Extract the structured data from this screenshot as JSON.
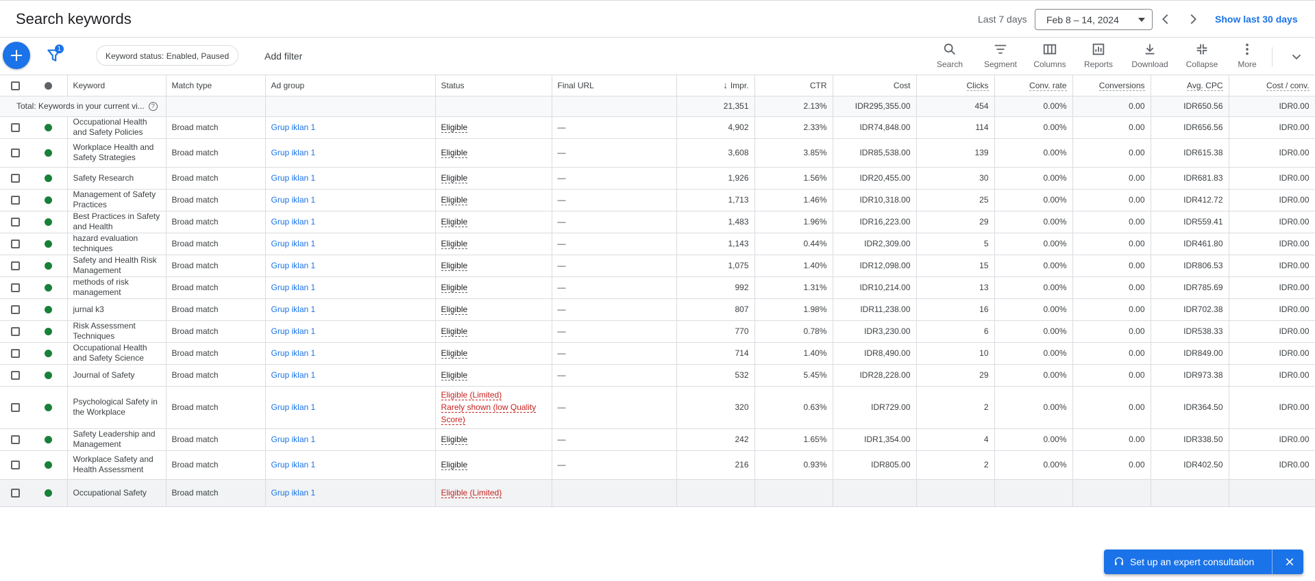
{
  "header": {
    "title": "Search keywords",
    "date_range_label": "Last 7 days",
    "date_range_value": "Feb 8 – 14, 2024",
    "show_last_30": "Show last 30 days"
  },
  "toolbar": {
    "filter_count": "1",
    "filter_chip": "Keyword status: Enabled, Paused",
    "add_filter": "Add filter",
    "tools": [
      {
        "label": "Search",
        "icon": "search-icon"
      },
      {
        "label": "Segment",
        "icon": "segment-icon"
      },
      {
        "label": "Columns",
        "icon": "columns-icon"
      },
      {
        "label": "Reports",
        "icon": "reports-icon"
      },
      {
        "label": "Download",
        "icon": "download-icon"
      },
      {
        "label": "Collapse",
        "icon": "collapse-icon"
      },
      {
        "label": "More",
        "icon": "more-vert-icon"
      }
    ]
  },
  "table": {
    "columns": {
      "keyword": "Keyword",
      "match_type": "Match type",
      "ad_group": "Ad group",
      "status": "Status",
      "final_url": "Final URL",
      "impr": "Impr.",
      "ctr": "CTR",
      "cost": "Cost",
      "clicks": "Clicks",
      "conv_rate": "Conv. rate",
      "conversions": "Conversions",
      "avg_cpc": "Avg. CPC",
      "cost_conv": "Cost / conv."
    },
    "total": {
      "label": "Total: Keywords in your current vi...",
      "impr": "21,351",
      "ctr": "2.13%",
      "cost": "IDR295,355.00",
      "clicks": "454",
      "conv_rate": "0.00%",
      "conversions": "0.00",
      "avg_cpc": "IDR650.56",
      "cost_conv": "IDR0.00"
    },
    "rows": [
      {
        "keyword": "Occupational Health and Safety Policies",
        "match_type": "Broad match",
        "ad_group": "Grup iklan 1",
        "status": "Eligible",
        "status_detail": "",
        "final_url": "—",
        "impr": "4,902",
        "ctr": "2.33%",
        "cost": "IDR74,848.00",
        "clicks": "114",
        "conv_rate": "0.00%",
        "conversions": "0.00",
        "avg_cpc": "IDR656.56",
        "cost_conv": "IDR0.00"
      },
      {
        "keyword": "Workplace Health and Safety Strategies",
        "match_type": "Broad match",
        "ad_group": "Grup iklan 1",
        "status": "Eligible",
        "status_detail": "",
        "final_url": "—",
        "impr": "3,608",
        "ctr": "3.85%",
        "cost": "IDR85,538.00",
        "clicks": "139",
        "conv_rate": "0.00%",
        "conversions": "0.00",
        "avg_cpc": "IDR615.38",
        "cost_conv": "IDR0.00"
      },
      {
        "keyword": "Safety Research",
        "match_type": "Broad match",
        "ad_group": "Grup iklan 1",
        "status": "Eligible",
        "status_detail": "",
        "final_url": "—",
        "impr": "1,926",
        "ctr": "1.56%",
        "cost": "IDR20,455.00",
        "clicks": "30",
        "conv_rate": "0.00%",
        "conversions": "0.00",
        "avg_cpc": "IDR681.83",
        "cost_conv": "IDR0.00"
      },
      {
        "keyword": "Management of Safety Practices",
        "match_type": "Broad match",
        "ad_group": "Grup iklan 1",
        "status": "Eligible",
        "status_detail": "",
        "final_url": "—",
        "impr": "1,713",
        "ctr": "1.46%",
        "cost": "IDR10,318.00",
        "clicks": "25",
        "conv_rate": "0.00%",
        "conversions": "0.00",
        "avg_cpc": "IDR412.72",
        "cost_conv": "IDR0.00"
      },
      {
        "keyword": "Best Practices in Safety and Health",
        "match_type": "Broad match",
        "ad_group": "Grup iklan 1",
        "status": "Eligible",
        "status_detail": "",
        "final_url": "—",
        "impr": "1,483",
        "ctr": "1.96%",
        "cost": "IDR16,223.00",
        "clicks": "29",
        "conv_rate": "0.00%",
        "conversions": "0.00",
        "avg_cpc": "IDR559.41",
        "cost_conv": "IDR0.00"
      },
      {
        "keyword": "hazard evaluation techniques",
        "match_type": "Broad match",
        "ad_group": "Grup iklan 1",
        "status": "Eligible",
        "status_detail": "",
        "final_url": "—",
        "impr": "1,143",
        "ctr": "0.44%",
        "cost": "IDR2,309.00",
        "clicks": "5",
        "conv_rate": "0.00%",
        "conversions": "0.00",
        "avg_cpc": "IDR461.80",
        "cost_conv": "IDR0.00"
      },
      {
        "keyword": "Safety and Health Risk Management",
        "match_type": "Broad match",
        "ad_group": "Grup iklan 1",
        "status": "Eligible",
        "status_detail": "",
        "final_url": "—",
        "impr": "1,075",
        "ctr": "1.40%",
        "cost": "IDR12,098.00",
        "clicks": "15",
        "conv_rate": "0.00%",
        "conversions": "0.00",
        "avg_cpc": "IDR806.53",
        "cost_conv": "IDR0.00"
      },
      {
        "keyword": "methods of risk management",
        "match_type": "Broad match",
        "ad_group": "Grup iklan 1",
        "status": "Eligible",
        "status_detail": "",
        "final_url": "—",
        "impr": "992",
        "ctr": "1.31%",
        "cost": "IDR10,214.00",
        "clicks": "13",
        "conv_rate": "0.00%",
        "conversions": "0.00",
        "avg_cpc": "IDR785.69",
        "cost_conv": "IDR0.00"
      },
      {
        "keyword": "jurnal k3",
        "match_type": "Broad match",
        "ad_group": "Grup iklan 1",
        "status": "Eligible",
        "status_detail": "",
        "final_url": "—",
        "impr": "807",
        "ctr": "1.98%",
        "cost": "IDR11,238.00",
        "clicks": "16",
        "conv_rate": "0.00%",
        "conversions": "0.00",
        "avg_cpc": "IDR702.38",
        "cost_conv": "IDR0.00"
      },
      {
        "keyword": "Risk Assessment Techniques",
        "match_type": "Broad match",
        "ad_group": "Grup iklan 1",
        "status": "Eligible",
        "status_detail": "",
        "final_url": "—",
        "impr": "770",
        "ctr": "0.78%",
        "cost": "IDR3,230.00",
        "clicks": "6",
        "conv_rate": "0.00%",
        "conversions": "0.00",
        "avg_cpc": "IDR538.33",
        "cost_conv": "IDR0.00"
      },
      {
        "keyword": "Occupational Health and Safety Science",
        "match_type": "Broad match",
        "ad_group": "Grup iklan 1",
        "status": "Eligible",
        "status_detail": "",
        "final_url": "—",
        "impr": "714",
        "ctr": "1.40%",
        "cost": "IDR8,490.00",
        "clicks": "10",
        "conv_rate": "0.00%",
        "conversions": "0.00",
        "avg_cpc": "IDR849.00",
        "cost_conv": "IDR0.00"
      },
      {
        "keyword": "Journal of Safety",
        "match_type": "Broad match",
        "ad_group": "Grup iklan 1",
        "status": "Eligible",
        "status_detail": "",
        "final_url": "—",
        "impr": "532",
        "ctr": "5.45%",
        "cost": "IDR28,228.00",
        "clicks": "29",
        "conv_rate": "0.00%",
        "conversions": "0.00",
        "avg_cpc": "IDR973.38",
        "cost_conv": "IDR0.00"
      },
      {
        "keyword": "Psychological Safety in the Workplace",
        "match_type": "Broad match",
        "ad_group": "Grup iklan 1",
        "status": "Eligible (Limited)",
        "status_detail": "Rarely shown (low Quality Score)",
        "final_url": "—",
        "impr": "320",
        "ctr": "0.63%",
        "cost": "IDR729.00",
        "clicks": "2",
        "conv_rate": "0.00%",
        "conversions": "0.00",
        "avg_cpc": "IDR364.50",
        "cost_conv": "IDR0.00"
      },
      {
        "keyword": "Safety Leadership and Management",
        "match_type": "Broad match",
        "ad_group": "Grup iklan 1",
        "status": "Eligible",
        "status_detail": "",
        "final_url": "—",
        "impr": "242",
        "ctr": "1.65%",
        "cost": "IDR1,354.00",
        "clicks": "4",
        "conv_rate": "0.00%",
        "conversions": "0.00",
        "avg_cpc": "IDR338.50",
        "cost_conv": "IDR0.00"
      },
      {
        "keyword": "Workplace Safety and Health Assessment",
        "match_type": "Broad match",
        "ad_group": "Grup iklan 1",
        "status": "Eligible",
        "status_detail": "",
        "final_url": "—",
        "impr": "216",
        "ctr": "0.93%",
        "cost": "IDR805.00",
        "clicks": "2",
        "conv_rate": "0.00%",
        "conversions": "0.00",
        "avg_cpc": "IDR402.50",
        "cost_conv": "IDR0.00"
      },
      {
        "keyword": "Occupational Safety",
        "match_type": "Broad match",
        "ad_group": "Grup iklan 1",
        "status": "Eligible (Limited)",
        "status_detail": "",
        "final_url": "",
        "impr": "",
        "ctr": "",
        "cost": "",
        "clicks": "",
        "conv_rate": "",
        "conversions": "",
        "avg_cpc": "",
        "cost_conv": ""
      }
    ]
  },
  "consult": {
    "label": "Set up an expert consultation"
  },
  "colors": {
    "accent": "#1a73e8",
    "enabled_dot": "#188038",
    "limited_status": "#c5221f"
  }
}
